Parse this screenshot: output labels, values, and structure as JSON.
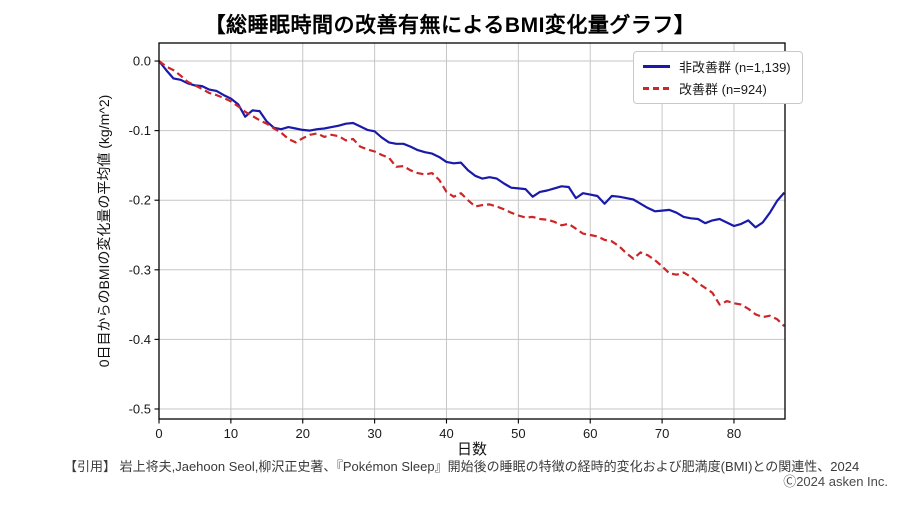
{
  "title": "【総睡眠時間の改善有無によるBMI変化量グラフ】",
  "citation": "【引用】 岩上将夫,Jaehoon Seol,柳沢正史著、『Pokémon Sleep』開始後の睡眠の特徴の経時的変化および肥満度(BMI)との関連性、2024",
  "copyright": "Ⓒ2024 asken Inc.",
  "colors": {
    "non_improved": "#1a1aaa",
    "improved": "#cc2629",
    "grid": "#c6c6c6",
    "spine": "#000000"
  },
  "chart_data": {
    "type": "line",
    "title": "【総睡眠時間の改善有無によるBMI変化量グラフ】",
    "xlabel": "日数",
    "ylabel": "0日目からのBMIの変化量の平均値 (kg/m^2)",
    "xlim": [
      0,
      87
    ],
    "ylim": [
      -0.5,
      0.0
    ],
    "xticks": [
      0,
      10,
      20,
      30,
      40,
      50,
      60,
      70,
      80
    ],
    "yticks": [
      0.0,
      -0.1,
      -0.2,
      -0.3,
      -0.4,
      -0.5
    ],
    "grid": true,
    "legend_position": "upper right",
    "x_unit_days": 1,
    "series": [
      {
        "name": "非改善群 (n=1,139)",
        "color_key": "non_improved",
        "style": "solid",
        "values": [
          0.0,
          -0.013,
          -0.025,
          -0.027,
          -0.032,
          -0.035,
          -0.036,
          -0.041,
          -0.043,
          -0.049,
          -0.054,
          -0.062,
          -0.08,
          -0.071,
          -0.072,
          -0.087,
          -0.096,
          -0.098,
          -0.095,
          -0.097,
          -0.099,
          -0.1,
          -0.098,
          -0.097,
          -0.095,
          -0.093,
          -0.09,
          -0.089,
          -0.094,
          -0.099,
          -0.101,
          -0.11,
          -0.117,
          -0.119,
          -0.119,
          -0.123,
          -0.128,
          -0.131,
          -0.133,
          -0.138,
          -0.145,
          -0.147,
          -0.146,
          -0.157,
          -0.165,
          -0.169,
          -0.167,
          -0.169,
          -0.176,
          -0.182,
          -0.183,
          -0.184,
          -0.195,
          -0.188,
          -0.186,
          -0.183,
          -0.18,
          -0.181,
          -0.197,
          -0.19,
          -0.192,
          -0.194,
          -0.205,
          -0.194,
          -0.195,
          -0.197,
          -0.199,
          -0.205,
          -0.211,
          -0.216,
          -0.215,
          -0.214,
          -0.218,
          -0.224,
          -0.226,
          -0.227,
          -0.233,
          -0.229,
          -0.227,
          -0.232,
          -0.237,
          -0.234,
          -0.229,
          -0.239,
          -0.232,
          -0.218,
          -0.201,
          -0.189
        ]
      },
      {
        "name": "改善群 (n=924)",
        "color_key": "improved",
        "style": "dashed",
        "values": [
          0.0,
          -0.008,
          -0.013,
          -0.021,
          -0.03,
          -0.035,
          -0.04,
          -0.046,
          -0.049,
          -0.053,
          -0.058,
          -0.065,
          -0.073,
          -0.079,
          -0.085,
          -0.09,
          -0.097,
          -0.103,
          -0.112,
          -0.117,
          -0.111,
          -0.106,
          -0.104,
          -0.109,
          -0.106,
          -0.108,
          -0.114,
          -0.112,
          -0.123,
          -0.127,
          -0.13,
          -0.135,
          -0.139,
          -0.152,
          -0.151,
          -0.157,
          -0.161,
          -0.163,
          -0.161,
          -0.171,
          -0.188,
          -0.195,
          -0.19,
          -0.2,
          -0.209,
          -0.207,
          -0.206,
          -0.209,
          -0.213,
          -0.218,
          -0.222,
          -0.225,
          -0.224,
          -0.227,
          -0.228,
          -0.231,
          -0.236,
          -0.234,
          -0.241,
          -0.248,
          -0.25,
          -0.252,
          -0.257,
          -0.259,
          -0.266,
          -0.276,
          -0.284,
          -0.275,
          -0.279,
          -0.286,
          -0.295,
          -0.305,
          -0.307,
          -0.304,
          -0.31,
          -0.319,
          -0.326,
          -0.333,
          -0.35,
          -0.345,
          -0.348,
          -0.35,
          -0.356,
          -0.364,
          -0.368,
          -0.366,
          -0.371,
          -0.381
        ]
      }
    ]
  }
}
